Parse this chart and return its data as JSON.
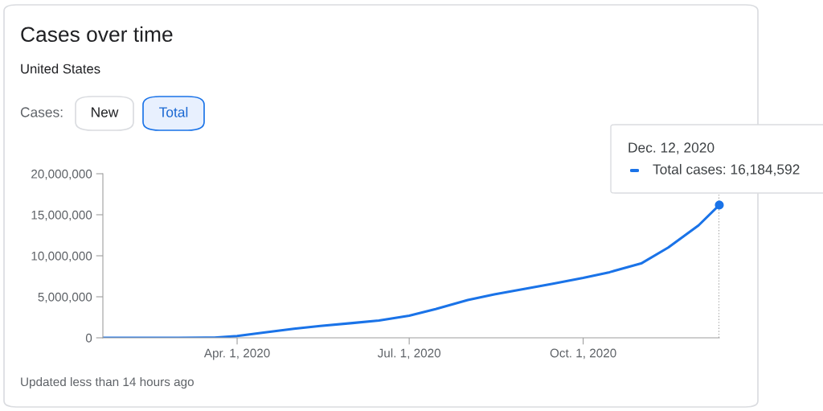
{
  "chart_data": {
    "type": "line",
    "title": "Cases over time",
    "subtitle": "United States",
    "annotations": [
      "Cases:",
      "New",
      "Total",
      {
        "text": "Dec. 12, 2020\nTotal cases: 16,184,592",
        "x": "2020-12-12",
        "y": 16184592
      },
      "Updated less than 14 hours ago"
    ],
    "x": [
      "2020-01-21",
      "2020-02-15",
      "2020-03-01",
      "2020-03-20",
      "2020-04-01",
      "2020-04-15",
      "2020-05-01",
      "2020-05-15",
      "2020-06-01",
      "2020-06-15",
      "2020-07-01",
      "2020-07-15",
      "2020-08-01",
      "2020-08-15",
      "2020-09-01",
      "2020-09-15",
      "2020-10-01",
      "2020-10-15",
      "2020-11-01",
      "2020-11-15",
      "2020-12-01",
      "2020-12-12"
    ],
    "series": [
      {
        "color": "#1a73e8",
        "values": [
          0,
          0,
          0,
          20000,
          210000,
          640000,
          1100000,
          1450000,
          1800000,
          2100000,
          2700000,
          3500000,
          4600000,
          5300000,
          6000000,
          6600000,
          7300000,
          8000000,
          9100000,
          11000000,
          13700000,
          16184592
        ]
      }
    ],
    "xlim": [
      "2020-01-21",
      "2020-12-12"
    ],
    "xticks": [
      {
        "value": "2020-04-01",
        "label": "Apr. 1, 2020"
      },
      {
        "value": "2020-07-01",
        "label": "Jul. 1, 2020"
      },
      {
        "value": "2020-10-01",
        "label": "Oct. 1, 2020"
      }
    ],
    "ylim": [
      0,
      20000000
    ],
    "yticks": [
      {
        "value": 0,
        "label": "0"
      },
      {
        "value": 5000000,
        "label": "5,000,000"
      },
      {
        "value": 10000000,
        "label": "10,000,000"
      },
      {
        "value": 15000000,
        "label": "15,000,000"
      },
      {
        "value": 20000000,
        "label": "20,000,000"
      }
    ],
    "ref_lines": [
      {
        "axis": "x",
        "value": "2020-12-12",
        "color": "#757575",
        "line_style": "dotted"
      }
    ],
    "grid": false,
    "legend": false,
    "marker": "none",
    "line_style": "solid"
  }
}
